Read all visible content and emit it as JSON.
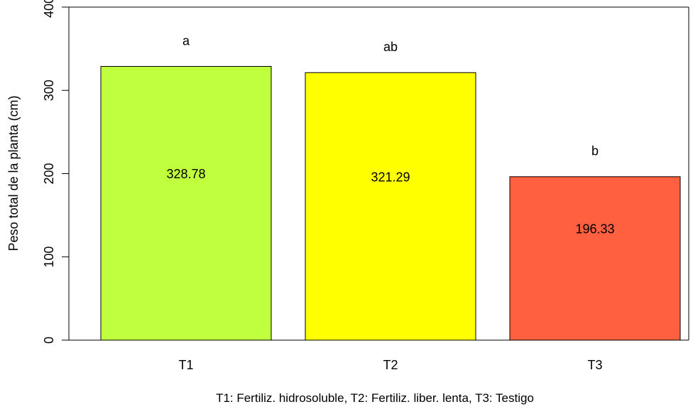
{
  "chart_data": {
    "type": "bar",
    "categories": [
      "T1",
      "T2",
      "T3"
    ],
    "values": [
      328.78,
      321.29,
      196.33
    ],
    "value_labels": [
      "328.78",
      "321.29",
      "196.33"
    ],
    "significance_letters": [
      "a",
      "ab",
      "b"
    ],
    "colors": [
      "#c0ff3e",
      "#ffff00",
      "#ff6040"
    ],
    "title": "",
    "xlabel": "T1: Fertiliz. hidrosoluble, T2: Fertiliz. liber. lenta, T3: Testigo",
    "ylabel": "Peso total de la planta (cm)",
    "ylim": [
      0,
      400
    ],
    "yticks": [
      0,
      100,
      200,
      300,
      400
    ],
    "ytick_labels": [
      "0",
      "100",
      "200",
      "300",
      "400"
    ],
    "grid": false,
    "legend": "none"
  }
}
